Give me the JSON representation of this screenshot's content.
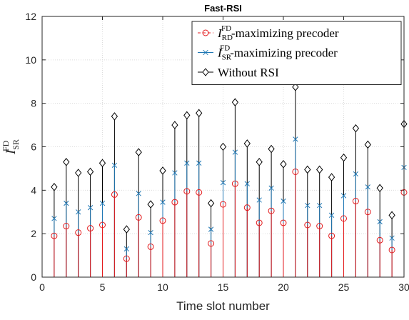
{
  "chart_data": {
    "type": "stem",
    "title": "Fast-RSI",
    "xlabel": "Time slot number",
    "ylabel": {
      "main": "I",
      "sup": "FD",
      "sub": "SR"
    },
    "xlim": [
      0,
      30
    ],
    "ylim": [
      0,
      12
    ],
    "xticks": [
      0,
      5,
      10,
      15,
      20,
      25,
      30
    ],
    "yticks": [
      0,
      2,
      4,
      6,
      8,
      10,
      12
    ],
    "grid": true,
    "legend_position": "top-right",
    "x": [
      1,
      2,
      3,
      4,
      5,
      6,
      7,
      8,
      9,
      10,
      11,
      12,
      13,
      14,
      15,
      16,
      17,
      18,
      19,
      20,
      21,
      22,
      23,
      24,
      25,
      26,
      27,
      28,
      29,
      30
    ],
    "series": [
      {
        "key": "rd",
        "legend": {
          "prefix": "I",
          "sup": "FD",
          "sub": "RD",
          "suffix": "-maximizing precoder"
        },
        "marker": "circle",
        "color": "#e31a1c",
        "values": [
          1.9,
          2.35,
          2.05,
          2.25,
          2.4,
          3.8,
          0.85,
          2.75,
          1.4,
          2.6,
          3.45,
          3.95,
          3.9,
          1.55,
          3.35,
          4.3,
          3.2,
          2.5,
          3.05,
          2.5,
          4.85,
          2.4,
          2.35,
          1.9,
          2.7,
          3.5,
          3.0,
          1.7,
          1.25,
          3.9
        ]
      },
      {
        "key": "sr",
        "legend": {
          "prefix": "I",
          "sup": "FD",
          "sub": "SR",
          "suffix": "-maximizing precoder"
        },
        "marker": "x",
        "color": "#1f77b4",
        "values": [
          2.7,
          3.4,
          3.0,
          3.2,
          3.4,
          5.15,
          1.3,
          3.85,
          2.05,
          3.45,
          4.8,
          5.25,
          5.25,
          2.2,
          4.35,
          5.75,
          4.3,
          3.55,
          4.1,
          3.5,
          6.35,
          3.3,
          3.3,
          2.85,
          3.75,
          4.75,
          4.15,
          2.55,
          1.8,
          5.05
        ]
      },
      {
        "key": "norsi",
        "legend": {
          "prefix": "",
          "sup": "",
          "sub": "",
          "suffix": "Without RSI"
        },
        "marker": "diamond",
        "color": "#000000",
        "values": [
          4.15,
          5.3,
          4.8,
          4.85,
          5.25,
          7.4,
          2.2,
          5.75,
          3.35,
          4.9,
          7.0,
          7.45,
          7.55,
          3.4,
          6.0,
          8.05,
          6.15,
          5.3,
          5.9,
          5.2,
          8.75,
          4.95,
          4.95,
          4.6,
          5.5,
          6.85,
          6.1,
          4.1,
          2.85,
          7.05
        ]
      }
    ]
  }
}
